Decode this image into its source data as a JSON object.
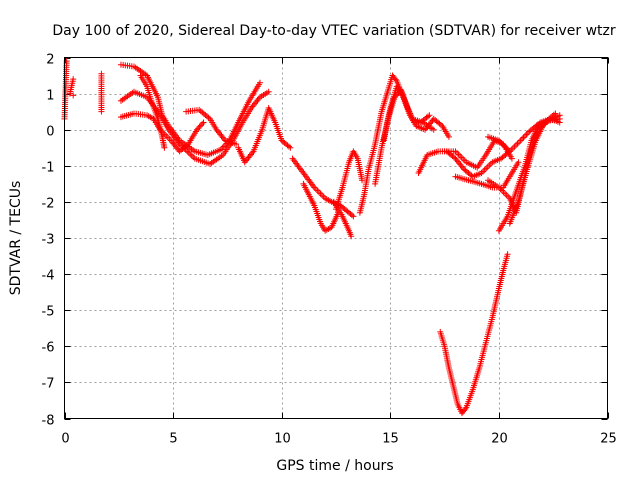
{
  "chart_data": {
    "type": "scatter",
    "title": "Day 100 of 2020, Sidereal Day-to-day VTEC variation (SDTVAR) for receiver wtzr",
    "xlabel": "GPS time / hours",
    "ylabel": "SDTVAR / TECUs",
    "xlim": [
      0,
      25
    ],
    "ylim": [
      -8,
      2
    ],
    "xticks": [
      0,
      5,
      10,
      15,
      20,
      25
    ],
    "yticks": [
      -8,
      -7,
      -6,
      -5,
      -4,
      -3,
      -2,
      -1,
      0,
      1,
      2
    ],
    "grid": true,
    "marker": "+",
    "color": "#ff0000",
    "segments": [
      [
        [
          0.0,
          0.3
        ],
        [
          0.05,
          1.1
        ],
        [
          0.1,
          1.9
        ]
      ],
      [
        [
          0.25,
          1.0
        ],
        [
          0.4,
          1.4
        ]
      ],
      [
        [
          0.4,
          0.95
        ]
      ],
      [
        [
          1.7,
          0.5
        ],
        [
          1.7,
          1.2
        ],
        [
          1.7,
          1.55
        ]
      ],
      [
        [
          2.6,
          1.8
        ],
        [
          3.2,
          1.75
        ],
        [
          3.8,
          1.5
        ],
        [
          4.3,
          0.9
        ],
        [
          4.5,
          0.4
        ],
        [
          4.8,
          0.1
        ],
        [
          5.3,
          -0.3
        ],
        [
          6.0,
          -0.6
        ],
        [
          6.6,
          -0.7
        ],
        [
          7.2,
          -0.55
        ],
        [
          7.6,
          -0.3
        ],
        [
          8.0,
          0.2
        ],
        [
          8.5,
          0.8
        ],
        [
          9.0,
          1.3
        ]
      ],
      [
        [
          2.6,
          0.8
        ],
        [
          3.2,
          1.05
        ],
        [
          3.8,
          0.9
        ],
        [
          4.3,
          0.5
        ],
        [
          4.8,
          0.0
        ],
        [
          5.3,
          -0.4
        ],
        [
          6.0,
          -0.8
        ],
        [
          6.7,
          -0.95
        ],
        [
          7.3,
          -0.7
        ],
        [
          7.8,
          -0.25
        ],
        [
          8.2,
          0.2
        ],
        [
          8.6,
          0.6
        ],
        [
          9.0,
          0.9
        ],
        [
          9.4,
          1.05
        ]
      ],
      [
        [
          2.6,
          0.35
        ],
        [
          3.2,
          0.45
        ],
        [
          3.8,
          0.4
        ],
        [
          4.1,
          0.3
        ],
        [
          4.4,
          0.0
        ],
        [
          4.9,
          -0.3
        ],
        [
          5.3,
          -0.6
        ],
        [
          5.7,
          -0.4
        ],
        [
          6.1,
          0.0
        ],
        [
          6.4,
          0.2
        ]
      ],
      [
        [
          3.5,
          1.5
        ],
        [
          3.8,
          1.2
        ],
        [
          4.0,
          0.8
        ],
        [
          4.3,
          0.3
        ],
        [
          4.5,
          -0.2
        ],
        [
          4.6,
          -0.5
        ]
      ],
      [
        [
          5.6,
          0.5
        ],
        [
          6.2,
          0.55
        ],
        [
          6.7,
          0.3
        ],
        [
          7.0,
          0.0
        ],
        [
          7.4,
          -0.3
        ],
        [
          7.9,
          -0.4
        ]
      ],
      [
        [
          8.0,
          -0.5
        ],
        [
          8.3,
          -0.9
        ],
        [
          8.7,
          -0.6
        ],
        [
          9.1,
          0.0
        ],
        [
          9.4,
          0.6
        ],
        [
          9.7,
          0.2
        ],
        [
          10.0,
          -0.3
        ],
        [
          10.4,
          -0.5
        ]
      ],
      [
        [
          10.5,
          -0.8
        ],
        [
          11.0,
          -1.2
        ],
        [
          11.5,
          -1.6
        ],
        [
          12.0,
          -1.9
        ],
        [
          12.3,
          -2.0
        ],
        [
          12.7,
          -2.1
        ],
        [
          13.1,
          -2.3
        ],
        [
          13.3,
          -2.4
        ]
      ],
      [
        [
          11.0,
          -1.5
        ],
        [
          11.5,
          -2.1
        ],
        [
          11.8,
          -2.6
        ],
        [
          12.0,
          -2.8
        ],
        [
          12.3,
          -2.7
        ],
        [
          12.6,
          -2.3
        ]
      ],
      [
        [
          12.4,
          -2.0
        ],
        [
          12.8,
          -2.4
        ],
        [
          13.1,
          -2.8
        ],
        [
          13.2,
          -2.95
        ]
      ],
      [
        [
          12.5,
          -2.2
        ],
        [
          12.8,
          -1.6
        ],
        [
          13.1,
          -0.9
        ],
        [
          13.3,
          -0.6
        ],
        [
          13.5,
          -0.8
        ],
        [
          13.7,
          -1.4
        ]
      ],
      [
        [
          13.6,
          -2.3
        ],
        [
          13.8,
          -1.8
        ],
        [
          14.0,
          -1.1
        ],
        [
          14.3,
          -0.4
        ],
        [
          14.6,
          0.5
        ],
        [
          14.9,
          1.1
        ],
        [
          15.1,
          1.5
        ],
        [
          15.3,
          1.35
        ],
        [
          15.6,
          0.9
        ],
        [
          15.9,
          0.4
        ],
        [
          16.2,
          0.1
        ],
        [
          16.6,
          0.0
        ],
        [
          17.0,
          0.3
        ],
        [
          17.4,
          0.1
        ],
        [
          17.7,
          -0.2
        ]
      ],
      [
        [
          14.3,
          -1.5
        ],
        [
          14.6,
          -0.5
        ],
        [
          14.9,
          0.3
        ],
        [
          15.2,
          0.9
        ],
        [
          15.5,
          1.1
        ],
        [
          15.8,
          0.6
        ],
        [
          16.1,
          0.2
        ],
        [
          16.4,
          0.2
        ],
        [
          16.8,
          0.4
        ]
      ],
      [
        [
          14.7,
          -0.3
        ],
        [
          15.0,
          0.6
        ],
        [
          15.3,
          1.2
        ],
        [
          15.6,
          0.9
        ],
        [
          16.0,
          0.3
        ],
        [
          16.5,
          0.2
        ],
        [
          17.0,
          0.0
        ]
      ],
      [
        [
          16.3,
          -1.2
        ],
        [
          16.7,
          -0.7
        ],
        [
          17.2,
          -0.6
        ],
        [
          17.6,
          -0.6
        ],
        [
          18.0,
          -0.8
        ],
        [
          18.4,
          -1.1
        ],
        [
          18.8,
          -1.3
        ],
        [
          19.2,
          -1.2
        ],
        [
          19.7,
          -0.9
        ],
        [
          20.1,
          -0.8
        ],
        [
          20.5,
          -0.6
        ]
      ],
      [
        [
          17.5,
          -0.6
        ],
        [
          18.0,
          -0.6
        ],
        [
          18.5,
          -0.9
        ],
        [
          19.0,
          -1.05
        ],
        [
          19.4,
          -0.7
        ],
        [
          19.8,
          -0.3
        ],
        [
          20.2,
          -0.4
        ],
        [
          20.6,
          -0.8
        ]
      ],
      [
        [
          18.0,
          -1.3
        ],
        [
          18.6,
          -1.4
        ],
        [
          19.2,
          -1.5
        ],
        [
          19.7,
          -1.6
        ],
        [
          20.2,
          -1.6
        ],
        [
          20.6,
          -1.2
        ],
        [
          20.9,
          -0.9
        ]
      ],
      [
        [
          19.5,
          -0.2
        ],
        [
          20.0,
          -0.3
        ],
        [
          20.5,
          -0.6
        ],
        [
          21.0,
          -0.3
        ],
        [
          21.4,
          -0.05
        ],
        [
          21.8,
          0.15
        ],
        [
          22.3,
          0.25
        ],
        [
          22.8,
          0.3
        ]
      ],
      [
        [
          19.5,
          -1.4
        ],
        [
          20.0,
          -1.6
        ],
        [
          20.5,
          -1.9
        ],
        [
          20.8,
          -2.3
        ],
        [
          21.1,
          -1.5
        ],
        [
          21.4,
          -0.7
        ],
        [
          21.8,
          0.0
        ],
        [
          22.3,
          0.25
        ],
        [
          22.8,
          0.4
        ]
      ],
      [
        [
          20.0,
          -2.8
        ],
        [
          20.4,
          -2.4
        ],
        [
          20.8,
          -1.7
        ],
        [
          21.2,
          -1.0
        ],
        [
          21.5,
          -0.3
        ],
        [
          21.9,
          0.2
        ],
        [
          22.4,
          0.3
        ],
        [
          22.8,
          0.2
        ]
      ],
      [
        [
          20.5,
          -2.6
        ],
        [
          20.9,
          -2.0
        ],
        [
          21.3,
          -1.1
        ],
        [
          21.7,
          -0.3
        ],
        [
          22.1,
          0.2
        ],
        [
          22.6,
          0.45
        ]
      ],
      [
        [
          17.3,
          -5.6
        ],
        [
          17.5,
          -6.0
        ],
        [
          17.7,
          -6.6
        ],
        [
          17.9,
          -7.1
        ],
        [
          18.1,
          -7.6
        ],
        [
          18.3,
          -7.85
        ],
        [
          18.5,
          -7.7
        ],
        [
          18.8,
          -7.2
        ],
        [
          19.1,
          -6.6
        ],
        [
          19.4,
          -5.9
        ],
        [
          19.7,
          -5.2
        ],
        [
          20.0,
          -4.4
        ],
        [
          20.2,
          -3.9
        ],
        [
          20.4,
          -3.45
        ]
      ]
    ]
  }
}
